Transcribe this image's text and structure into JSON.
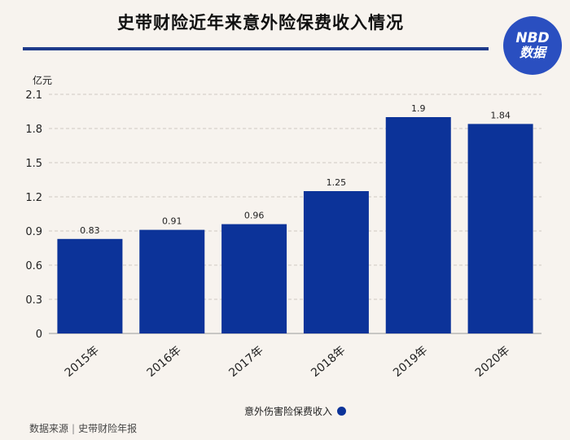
{
  "header": {
    "title": "史带财险近年来意外险保费收入情况",
    "logo_line1": "NBD",
    "logo_line2": "数据"
  },
  "chart_data": {
    "type": "bar",
    "unit_label": "亿元",
    "categories": [
      "2015年",
      "2016年",
      "2017年",
      "2018年",
      "2019年",
      "2020年"
    ],
    "series": [
      {
        "name": "意外伤害险保费收入",
        "values": [
          0.83,
          0.91,
          0.96,
          1.25,
          1.9,
          1.84
        ],
        "color": "#0c3399"
      }
    ],
    "value_labels": [
      "0.83",
      "0.91",
      "0.96",
      "1.25",
      "1.9",
      "1.84"
    ],
    "yticks": [
      "0",
      "0.3",
      "0.6",
      "0.9",
      "1.2",
      "1.5",
      "1.8",
      "2.1"
    ],
    "ylim": [
      0,
      2.1
    ],
    "grid": true,
    "legend_position": "bottom-center"
  },
  "footer": {
    "source_label": "数据来源",
    "source_value": "史带财险年报"
  },
  "colors": {
    "bar": "#0c3399",
    "accent_rule": "#1e3a8a",
    "logo": "#2a4fc0",
    "background": "#f7f3ee"
  }
}
